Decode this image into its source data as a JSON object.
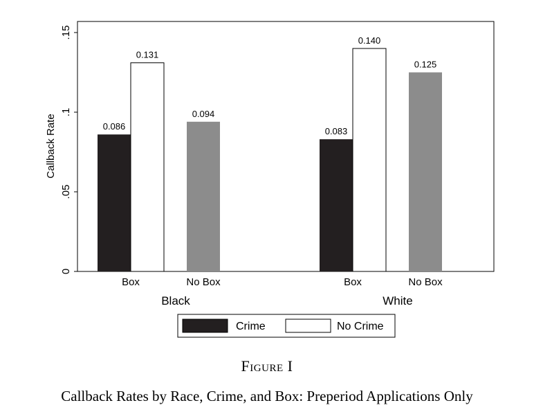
{
  "chart_data": {
    "type": "bar",
    "ylabel": "Callback Rate",
    "ylim": [
      0,
      0.15
    ],
    "yticks": [
      0,
      0.05,
      0.1,
      0.15
    ],
    "ytick_labels": [
      "0",
      ".05",
      ".1",
      ".15"
    ],
    "grid": false,
    "groups": [
      {
        "name": "Black",
        "subgroups": [
          {
            "name": "Box",
            "values": [
              0.086,
              0.131
            ],
            "labels": [
              "0.086",
              "0.131"
            ],
            "series": [
              "Crime",
              "No Crime"
            ]
          },
          {
            "name": "No Box",
            "values": [
              0.094
            ],
            "labels": [
              "0.094"
            ],
            "series": [
              "No Box"
            ]
          }
        ]
      },
      {
        "name": "White",
        "subgroups": [
          {
            "name": "Box",
            "values": [
              0.083,
              0.14
            ],
            "labels": [
              "0.083",
              "0.140"
            ],
            "series": [
              "Crime",
              "No Crime"
            ]
          },
          {
            "name": "No Box",
            "values": [
              0.125
            ],
            "labels": [
              "0.125"
            ],
            "series": [
              "No Box"
            ]
          }
        ]
      }
    ],
    "legend": {
      "placement": "bottom",
      "entries": [
        {
          "name": "Crime",
          "color": "#231f20"
        },
        {
          "name": "No Crime",
          "color": "#ffffff"
        }
      ]
    },
    "colors": {
      "Crime": "#231f20",
      "No Crime": "#ffffff",
      "No Box": "#8c8c8c"
    }
  },
  "figure": {
    "label": "Figure I",
    "title": "Callback Rates by Race, Crime, and Box: Preperiod Applications Only"
  }
}
